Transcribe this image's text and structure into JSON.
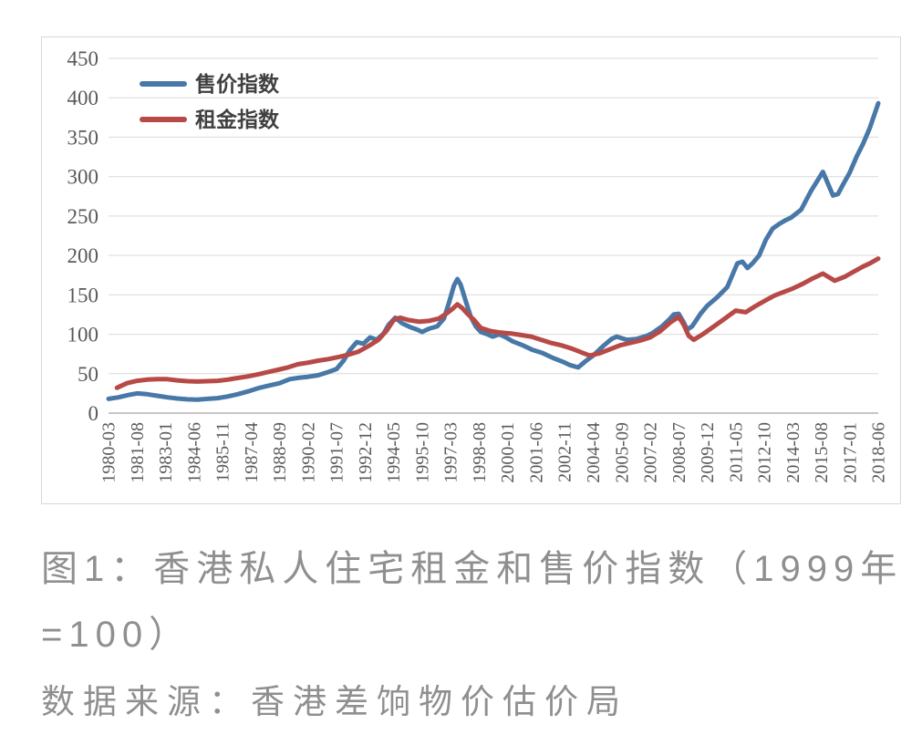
{
  "figure": {
    "caption_line1": "图1：香港私人住宅租金和售价指数（1999年",
    "caption_line2": "=100）",
    "source": "数据来源：香港差饷物价估价局"
  },
  "chart_data": {
    "type": "line",
    "title": "",
    "xlabel": "",
    "ylabel": "",
    "grid": true,
    "legend_position": "top-left-inside",
    "colors": {
      "price_line": "#4878a8",
      "rent_line": "#b74946",
      "gridline": "#d9d9d9",
      "axis_line": "#b3b3b3",
      "tick_text": "#595959",
      "legend_text": "#404040"
    },
    "y_axis": {
      "ticks": [
        0,
        50,
        100,
        150,
        200,
        250,
        300,
        350,
        400,
        450
      ],
      "range": [
        0,
        450
      ]
    },
    "x_axis": {
      "unit": "year-month",
      "range": [
        "1980-03",
        "2018-06"
      ],
      "tick_labels": [
        "1980-03",
        "1981-08",
        "1983-01",
        "1984-06",
        "1985-11",
        "1987-04",
        "1988-09",
        "1990-02",
        "1991-07",
        "1992-12",
        "1994-05",
        "1995-10",
        "1997-03",
        "1998-08",
        "2000-01",
        "2001-06",
        "2002-11",
        "2004-04",
        "2005-09",
        "2007-02",
        "2008-07",
        "2009-12",
        "2011-05",
        "2012-10",
        "2014-03",
        "2015-08",
        "2017-01",
        "2018-06"
      ]
    },
    "series": [
      {
        "name": "售价指数",
        "color": "#4878a8",
        "points": [
          [
            "1980-03",
            18
          ],
          [
            "1980-09",
            20
          ],
          [
            "1981-03",
            23
          ],
          [
            "1981-08",
            25
          ],
          [
            "1982-02",
            24
          ],
          [
            "1982-08",
            22
          ],
          [
            "1983-02",
            20
          ],
          [
            "1983-08",
            18.5
          ],
          [
            "1984-02",
            17.5
          ],
          [
            "1984-08",
            17
          ],
          [
            "1985-02",
            18
          ],
          [
            "1985-08",
            19
          ],
          [
            "1986-02",
            21
          ],
          [
            "1986-08",
            24
          ],
          [
            "1987-03",
            28
          ],
          [
            "1987-09",
            32
          ],
          [
            "1988-03",
            35
          ],
          [
            "1988-09",
            38
          ],
          [
            "1989-03",
            43
          ],
          [
            "1989-09",
            45
          ],
          [
            "1990-02",
            46
          ],
          [
            "1990-08",
            48
          ],
          [
            "1991-02",
            52
          ],
          [
            "1991-07",
            56
          ],
          [
            "1991-11",
            66
          ],
          [
            "1992-03",
            80
          ],
          [
            "1992-07",
            90
          ],
          [
            "1992-11",
            88
          ],
          [
            "1993-03",
            96
          ],
          [
            "1993-07",
            93
          ],
          [
            "1993-11",
            101
          ],
          [
            "1994-02",
            112
          ],
          [
            "1994-06",
            121
          ],
          [
            "1994-10",
            114
          ],
          [
            "1995-03",
            109
          ],
          [
            "1995-07",
            106
          ],
          [
            "1995-10",
            103
          ],
          [
            "1996-02",
            107
          ],
          [
            "1996-07",
            110
          ],
          [
            "1996-11",
            120
          ],
          [
            "1997-02",
            140
          ],
          [
            "1997-05",
            162
          ],
          [
            "1997-07",
            170
          ],
          [
            "1997-09",
            163
          ],
          [
            "1997-12",
            142
          ],
          [
            "1998-03",
            122
          ],
          [
            "1998-06",
            110
          ],
          [
            "1998-09",
            103
          ],
          [
            "1999-01",
            100
          ],
          [
            "1999-04",
            97
          ],
          [
            "1999-08",
            100
          ],
          [
            "1999-12",
            96
          ],
          [
            "2000-04",
            91
          ],
          [
            "2000-10",
            86
          ],
          [
            "2001-04",
            80
          ],
          [
            "2001-10",
            76
          ],
          [
            "2002-04",
            70
          ],
          [
            "2002-10",
            65
          ],
          [
            "2003-02",
            61
          ],
          [
            "2003-07",
            58
          ],
          [
            "2003-11",
            65
          ],
          [
            "2004-04",
            73
          ],
          [
            "2004-10",
            85
          ],
          [
            "2005-03",
            94
          ],
          [
            "2005-06",
            97
          ],
          [
            "2005-12",
            93
          ],
          [
            "2006-06",
            94
          ],
          [
            "2006-12",
            98
          ],
          [
            "2007-03",
            101
          ],
          [
            "2007-09",
            110
          ],
          [
            "2008-01",
            118
          ],
          [
            "2008-04",
            125
          ],
          [
            "2008-07",
            126
          ],
          [
            "2008-10",
            115
          ],
          [
            "2008-12",
            106
          ],
          [
            "2009-03",
            110
          ],
          [
            "2009-08",
            126
          ],
          [
            "2009-12",
            136
          ],
          [
            "2010-06",
            147
          ],
          [
            "2010-12",
            160
          ],
          [
            "2011-03",
            175
          ],
          [
            "2011-06",
            190
          ],
          [
            "2011-09",
            192
          ],
          [
            "2011-12",
            184
          ],
          [
            "2012-03",
            190
          ],
          [
            "2012-07",
            200
          ],
          [
            "2012-11",
            220
          ],
          [
            "2013-03",
            234
          ],
          [
            "2013-07",
            240
          ],
          [
            "2013-11",
            245
          ],
          [
            "2014-02",
            248
          ],
          [
            "2014-08",
            258
          ],
          [
            "2015-02",
            282
          ],
          [
            "2015-09",
            306
          ],
          [
            "2016-03",
            276
          ],
          [
            "2016-06",
            278
          ],
          [
            "2016-09",
            290
          ],
          [
            "2017-01",
            305
          ],
          [
            "2017-05",
            325
          ],
          [
            "2017-09",
            342
          ],
          [
            "2018-01",
            362
          ],
          [
            "2018-06",
            393
          ]
        ]
      },
      {
        "name": "租金指数",
        "color": "#b74946",
        "points": [
          [
            "1980-08",
            32
          ],
          [
            "1981-02",
            38
          ],
          [
            "1981-08",
            41
          ],
          [
            "1982-02",
            42.5
          ],
          [
            "1982-08",
            43
          ],
          [
            "1983-02",
            43
          ],
          [
            "1983-08",
            41.5
          ],
          [
            "1984-02",
            40.5
          ],
          [
            "1984-08",
            40
          ],
          [
            "1985-02",
            40.5
          ],
          [
            "1985-08",
            41
          ],
          [
            "1986-02",
            42.5
          ],
          [
            "1986-08",
            44.5
          ],
          [
            "1987-02",
            46.5
          ],
          [
            "1987-08",
            49
          ],
          [
            "1988-02",
            52
          ],
          [
            "1988-08",
            55
          ],
          [
            "1989-02",
            58
          ],
          [
            "1989-08",
            62
          ],
          [
            "1990-02",
            64
          ],
          [
            "1990-08",
            66.5
          ],
          [
            "1991-02",
            68.5
          ],
          [
            "1991-08",
            71
          ],
          [
            "1992-02",
            74
          ],
          [
            "1992-08",
            78
          ],
          [
            "1993-02",
            85
          ],
          [
            "1993-08",
            93
          ],
          [
            "1994-01",
            105
          ],
          [
            "1994-05",
            118
          ],
          [
            "1994-09",
            121
          ],
          [
            "1995-02",
            118
          ],
          [
            "1995-08",
            116
          ],
          [
            "1996-02",
            117
          ],
          [
            "1996-08",
            120
          ],
          [
            "1997-01",
            127
          ],
          [
            "1997-04",
            132
          ],
          [
            "1997-07",
            138
          ],
          [
            "1997-10",
            133
          ],
          [
            "1998-01",
            126
          ],
          [
            "1998-05",
            118
          ],
          [
            "1998-09",
            108
          ],
          [
            "1999-03",
            104
          ],
          [
            "1999-09",
            102
          ],
          [
            "2000-03",
            101
          ],
          [
            "2000-09",
            99
          ],
          [
            "2001-03",
            97
          ],
          [
            "2001-09",
            93
          ],
          [
            "2002-03",
            89
          ],
          [
            "2002-09",
            86
          ],
          [
            "2003-03",
            82
          ],
          [
            "2003-09",
            77
          ],
          [
            "2004-02",
            73
          ],
          [
            "2004-08",
            76
          ],
          [
            "2005-02",
            81
          ],
          [
            "2005-08",
            86
          ],
          [
            "2006-02",
            89
          ],
          [
            "2006-08",
            92
          ],
          [
            "2007-02",
            96
          ],
          [
            "2007-08",
            104
          ],
          [
            "2008-02",
            115
          ],
          [
            "2008-07",
            122
          ],
          [
            "2008-10",
            112
          ],
          [
            "2009-01",
            98
          ],
          [
            "2009-04",
            93
          ],
          [
            "2009-10",
            101
          ],
          [
            "2010-04",
            110
          ],
          [
            "2010-10",
            119
          ],
          [
            "2011-05",
            130
          ],
          [
            "2011-11",
            128
          ],
          [
            "2012-05",
            136
          ],
          [
            "2012-10",
            142
          ],
          [
            "2013-04",
            149
          ],
          [
            "2013-10",
            154
          ],
          [
            "2014-03",
            158
          ],
          [
            "2014-09",
            164
          ],
          [
            "2015-03",
            171
          ],
          [
            "2015-09",
            177
          ],
          [
            "2016-04",
            168
          ],
          [
            "2016-10",
            173
          ],
          [
            "2017-03",
            179
          ],
          [
            "2017-09",
            186
          ],
          [
            "2018-01",
            190
          ],
          [
            "2018-06",
            196
          ]
        ]
      }
    ]
  }
}
